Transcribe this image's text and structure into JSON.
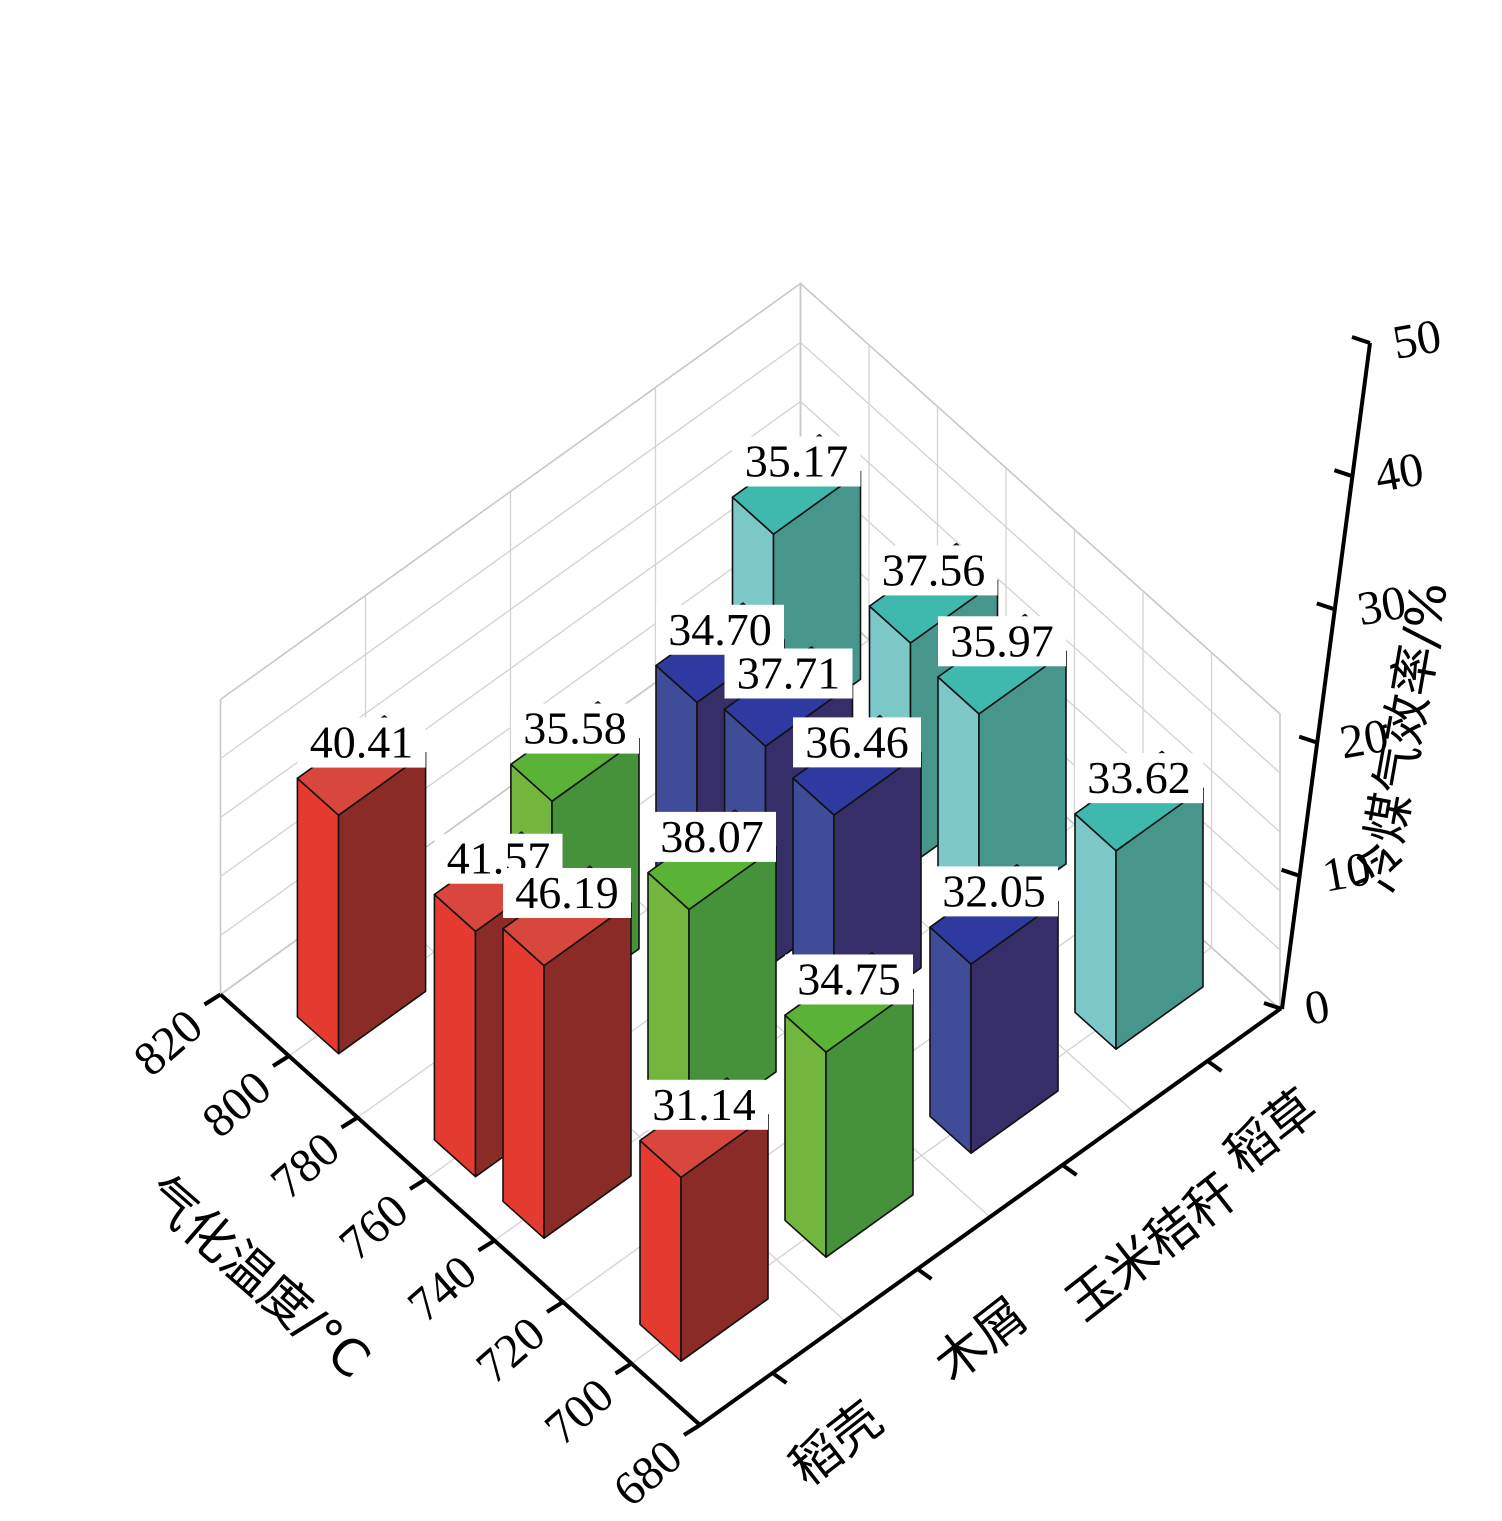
{
  "chart_data": {
    "type": "bar3d",
    "x_axis": {
      "label": "气化温度/°C",
      "ticks": [
        "820",
        "800",
        "780",
        "760",
        "740",
        "720",
        "700",
        "680"
      ]
    },
    "y_axis": {
      "label": "",
      "categories": [
        "稻壳",
        "木屑",
        "玉米秸秆",
        "稻草"
      ]
    },
    "z_axis": {
      "label": "冷煤气效率/%",
      "ticks": [
        "0",
        "10",
        "20",
        "30",
        "40",
        "50"
      ],
      "range": [
        0,
        50
      ]
    },
    "grid": true,
    "series": [
      {
        "material": "稻壳",
        "color_front": "#e53a30",
        "color_side": "#8b2b27",
        "color_top": "#d8473d",
        "points": [
          {
            "temp": 800,
            "value": 40.41
          },
          {
            "temp": 760,
            "value": 41.57
          },
          {
            "temp": 740,
            "value": 46.19
          },
          {
            "temp": 700,
            "value": 31.14
          }
        ]
      },
      {
        "material": "木屑",
        "color_front": "#72b63e",
        "color_side": "#46923a",
        "color_top": "#5ab236",
        "points": [
          {
            "temp": 780,
            "value": 35.58
          },
          {
            "temp": 740,
            "value": 38.07
          },
          {
            "temp": 700,
            "value": 34.75
          }
        ]
      },
      {
        "material": "玉米秸秆",
        "color_front": "#3f4d98",
        "color_side": "#362e68",
        "color_top": "#2e3aa0",
        "points": [
          {
            "temp": 780,
            "value": 34.7
          },
          {
            "temp": 760,
            "value": 37.71
          },
          {
            "temp": 740,
            "value": 36.46
          },
          {
            "temp": 700,
            "value": 32.05
          }
        ]
      },
      {
        "material": "稻草",
        "color_front": "#7cc8c8",
        "color_side": "#47968c",
        "color_top": "#3fb8ae",
        "points": [
          {
            "temp": 800,
            "value": 35.17
          },
          {
            "temp": 760,
            "value": 37.56
          },
          {
            "temp": 740,
            "value": 35.97
          },
          {
            "temp": 700,
            "value": 33.62
          }
        ]
      }
    ]
  }
}
